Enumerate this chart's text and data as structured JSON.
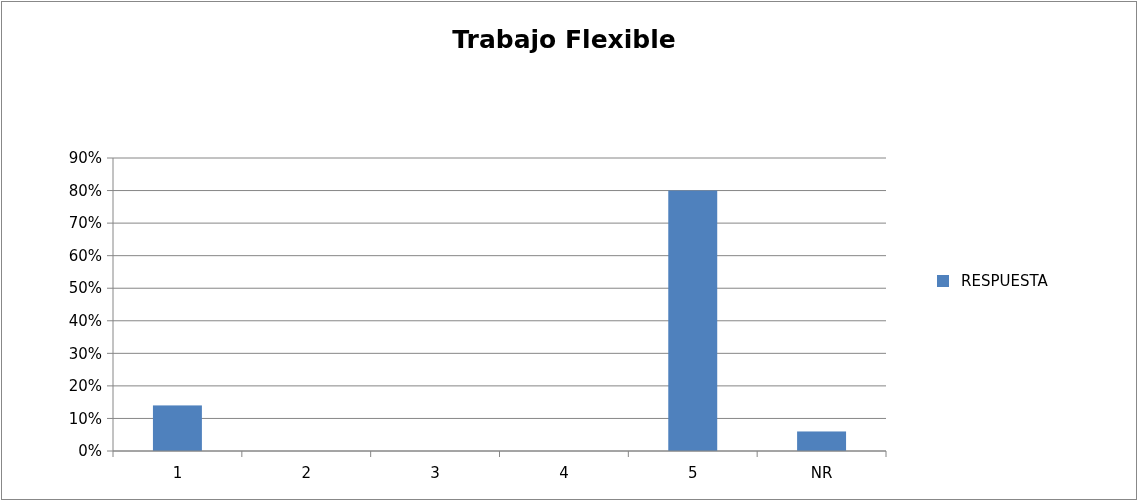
{
  "chart_data": {
    "type": "bar",
    "title": "Trabajo Flexible",
    "categories": [
      "1",
      "2",
      "3",
      "4",
      "5",
      "NR"
    ],
    "series": [
      {
        "name": "RESPUESTA",
        "color": "#4f81bd",
        "values": [
          14,
          0,
          0,
          0,
          80,
          6
        ]
      }
    ],
    "ylim": [
      0,
      90
    ],
    "yticks": [
      {
        "value": 0,
        "label": "0%"
      },
      {
        "value": 10,
        "label": "10%"
      },
      {
        "value": 20,
        "label": "20%"
      },
      {
        "value": 30,
        "label": "30%"
      },
      {
        "value": 40,
        "label": "40%"
      },
      {
        "value": 50,
        "label": "50%"
      },
      {
        "value": 60,
        "label": "60%"
      },
      {
        "value": 70,
        "label": "70%"
      },
      {
        "value": 80,
        "label": "80%"
      },
      {
        "value": 90,
        "label": "90%"
      }
    ],
    "grid": "y",
    "legend": "right"
  }
}
